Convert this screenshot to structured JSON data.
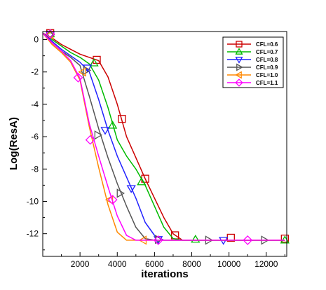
{
  "chart_data": {
    "type": "line",
    "title": "",
    "xlabel": "iterations",
    "ylabel": "Log(ResA)",
    "xlim": [
      0,
      13100
    ],
    "ylim": [
      -13.4,
      0.5
    ],
    "x_ticks": [
      2000,
      4000,
      6000,
      8000,
      10000,
      12000
    ],
    "x_tick_labels": [
      "2000",
      "4000",
      "6000",
      "8000",
      "10000",
      "12000"
    ],
    "y_ticks": [
      0,
      -2,
      -4,
      -6,
      -8,
      -10,
      -12
    ],
    "y_tick_labels": [
      "0",
      "-2",
      "-4",
      "-6",
      "-8",
      "-10",
      "-12"
    ],
    "grid": false,
    "legend_position": "top-right",
    "series": [
      {
        "name": "CFL=0.6",
        "color": "#cc0000",
        "marker": "square",
        "x": [
          0,
          500,
          1000,
          1500,
          2000,
          2500,
          3000,
          3500,
          4000,
          4500,
          5000,
          5500,
          6000,
          6500,
          7000,
          7500,
          8000,
          9000,
          10000,
          11000,
          12000,
          13000
        ],
        "y": [
          0.4,
          0.1,
          -0.3,
          -0.6,
          -0.9,
          -1.1,
          -1.3,
          -2.3,
          -4.0,
          -6.0,
          -7.3,
          -8.6,
          -9.8,
          -11.0,
          -12.0,
          -12.4,
          -12.4,
          -12.4,
          -12.4,
          -12.4,
          -12.4,
          -12.4
        ],
        "markers": [
          [
            400,
            0.4
          ],
          [
            2900,
            -1.25
          ],
          [
            4250,
            -4.9
          ],
          [
            5500,
            -8.6
          ],
          [
            7100,
            -12.1
          ],
          [
            10100,
            -12.25
          ],
          [
            13000,
            -12.3
          ]
        ]
      },
      {
        "name": "CFL=0.7",
        "color": "#00bb00",
        "marker": "triangle-up",
        "x": [
          0,
          500,
          1000,
          1500,
          2000,
          2500,
          3000,
          3500,
          4000,
          4500,
          5000,
          5500,
          6000,
          6500,
          7000,
          7500,
          8000,
          9000,
          10000,
          11000,
          12000,
          13000
        ],
        "y": [
          0.4,
          0.0,
          -0.4,
          -0.8,
          -1.1,
          -1.5,
          -2.5,
          -4.2,
          -6.2,
          -7.2,
          -8.0,
          -9.0,
          -10.3,
          -11.6,
          -12.3,
          -12.4,
          -12.4,
          -12.4,
          -12.4,
          -12.4,
          -12.4,
          -12.4
        ],
        "markers": [
          [
            400,
            0.35
          ],
          [
            2750,
            -1.45
          ],
          [
            3750,
            -5.3
          ],
          [
            5300,
            -8.8
          ],
          [
            8200,
            -12.35
          ],
          [
            13000,
            -12.4
          ]
        ]
      },
      {
        "name": "CFL=0.8",
        "color": "#2222ff",
        "marker": "triangle-down",
        "x": [
          0,
          500,
          1000,
          1500,
          2000,
          2500,
          3000,
          3500,
          4000,
          4500,
          5000,
          5500,
          6000,
          6500,
          7000,
          8000,
          9000,
          10000,
          11000,
          12000,
          13000
        ],
        "y": [
          0.4,
          -0.1,
          -0.6,
          -1.0,
          -1.4,
          -2.0,
          -3.7,
          -5.6,
          -7.2,
          -8.5,
          -9.8,
          -11.3,
          -12.1,
          -12.4,
          -12.4,
          -12.4,
          -12.4,
          -12.4,
          -12.4,
          -12.4,
          -12.4
        ],
        "markers": [
          [
            400,
            0.3
          ],
          [
            2400,
            -1.75
          ],
          [
            3350,
            -5.6
          ],
          [
            4750,
            -9.2
          ],
          [
            6200,
            -12.35
          ],
          [
            9700,
            -12.4
          ]
        ]
      },
      {
        "name": "CFL=0.9",
        "color": "#555555",
        "marker": "triangle-right",
        "x": [
          0,
          500,
          1000,
          1500,
          2000,
          2500,
          3000,
          3500,
          4000,
          4500,
          5000,
          5500,
          6000,
          6500,
          7000,
          8000,
          9000,
          10000,
          11000,
          12000,
          13000
        ],
        "y": [
          0.4,
          -0.2,
          -0.7,
          -1.1,
          -1.6,
          -3.5,
          -5.5,
          -7.3,
          -8.9,
          -10.3,
          -11.6,
          -12.3,
          -12.4,
          -12.4,
          -12.4,
          -12.4,
          -12.4,
          -12.4,
          -12.4,
          -12.4,
          -12.4
        ],
        "markers": [
          [
            400,
            0.3
          ],
          [
            2350,
            -1.9
          ],
          [
            2950,
            -5.9
          ],
          [
            4150,
            -9.5
          ],
          [
            6200,
            -12.35
          ],
          [
            8900,
            -12.4
          ],
          [
            11900,
            -12.4
          ]
        ]
      },
      {
        "name": "CFL=1.0",
        "color": "#ff8800",
        "marker": "triangle-left",
        "x": [
          0,
          500,
          1000,
          1500,
          2000,
          2500,
          3000,
          3500,
          4000,
          4500,
          5000,
          5500,
          6000,
          7000,
          8000,
          9000,
          10000,
          11000,
          12000,
          13000
        ],
        "y": [
          0.4,
          -0.3,
          -0.8,
          -1.4,
          -2.5,
          -5.4,
          -7.9,
          -10.2,
          -11.9,
          -12.4,
          -12.4,
          -12.4,
          -12.4,
          -12.4,
          -12.4,
          -12.4,
          -12.4,
          -12.4,
          -12.4,
          -12.4
        ],
        "markers": [
          [
            400,
            0.3
          ],
          [
            2150,
            -2.0
          ],
          [
            3600,
            -9.9
          ],
          [
            5400,
            -12.4
          ]
        ]
      },
      {
        "name": "CFL=1.1",
        "color": "#ff00ff",
        "marker": "diamond",
        "x": [
          0,
          500,
          1000,
          1500,
          2000,
          2500,
          3000,
          3500,
          4000,
          4500,
          5000,
          5500,
          6000,
          7000,
          8000,
          9000,
          10000,
          11000,
          12000,
          13000
        ],
        "y": [
          0.4,
          -0.2,
          -0.7,
          -1.3,
          -2.4,
          -5.2,
          -7.2,
          -9.1,
          -10.9,
          -12.1,
          -12.4,
          -12.4,
          -12.4,
          -12.4,
          -12.4,
          -12.4,
          -12.4,
          -12.4,
          -12.4,
          -12.4
        ],
        "markers": [
          [
            400,
            0.35
          ],
          [
            1900,
            -2.35
          ],
          [
            2550,
            -6.2
          ],
          [
            3750,
            -9.9
          ],
          [
            6200,
            -12.4
          ],
          [
            11000,
            -12.4
          ]
        ]
      }
    ]
  }
}
